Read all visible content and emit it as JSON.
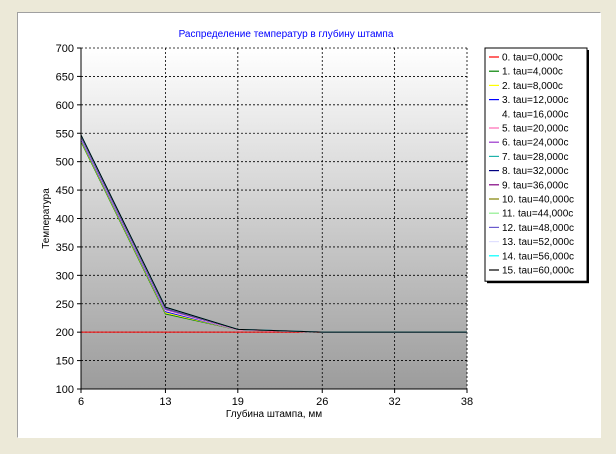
{
  "chart_data": {
    "type": "line",
    "title": "Распределение температур в глубину штампа",
    "xlabel": "Глубина штампа, мм",
    "ylabel": "Температура",
    "xlim": [
      6,
      38
    ],
    "ylim": [
      100,
      700
    ],
    "x_ticks": [
      6,
      13,
      19,
      26,
      32,
      38
    ],
    "y_ticks": [
      100,
      150,
      200,
      250,
      300,
      350,
      400,
      450,
      500,
      550,
      600,
      650,
      700
    ],
    "grid": true,
    "legend_position": "right",
    "x": [
      6,
      13,
      19,
      26,
      32,
      38
    ],
    "series": [
      {
        "name": "0. tau=0,000c",
        "color": "#ff0000",
        "values": [
          200,
          200,
          200,
          200,
          200,
          200
        ]
      },
      {
        "name": "1. tau=4,000c",
        "color": "#008000",
        "values": [
          535,
          232,
          204,
          200,
          200,
          200
        ]
      },
      {
        "name": "2. tau=8,000c",
        "color": "#ffff00",
        "values": [
          537,
          234,
          204,
          200,
          200,
          200
        ]
      },
      {
        "name": "3. tau=12,000c",
        "color": "#0000ff",
        "values": [
          539,
          236,
          204,
          200,
          200,
          200
        ]
      },
      {
        "name": "4. tau=16,000c",
        "color": "#ffffff",
        "values": [
          541,
          238,
          204,
          200,
          200,
          200
        ]
      },
      {
        "name": "5. tau=20,000c",
        "color": "#ff69b4",
        "values": [
          542,
          239,
          204,
          200,
          200,
          200
        ]
      },
      {
        "name": "6. tau=24,000c",
        "color": "#9933cc",
        "values": [
          543,
          240,
          205,
          200,
          200,
          200
        ]
      },
      {
        "name": "7. tau=28,000c",
        "color": "#20b2aa",
        "values": [
          544,
          241,
          205,
          200,
          200,
          200
        ]
      },
      {
        "name": "8. tau=32,000c",
        "color": "#000080",
        "values": [
          545,
          242,
          205,
          200,
          200,
          200
        ]
      },
      {
        "name": "9. tau=36,000c",
        "color": "#800080",
        "values": [
          545,
          242,
          205,
          200,
          200,
          200
        ]
      },
      {
        "name": "10. tau=40,000c",
        "color": "#808000",
        "values": [
          546,
          243,
          205,
          200,
          200,
          200
        ]
      },
      {
        "name": "11. tau=44,000c",
        "color": "#90ee90",
        "values": [
          546,
          243,
          205,
          200,
          200,
          200
        ]
      },
      {
        "name": "12. tau=48,000c",
        "color": "#6a5acd",
        "values": [
          546,
          243,
          205,
          200,
          200,
          200
        ]
      },
      {
        "name": "13. tau=52,000c",
        "color": "#e0e0ff",
        "values": [
          547,
          244,
          205,
          200,
          200,
          200
        ]
      },
      {
        "name": "14. tau=56,000c",
        "color": "#00ffff",
        "values": [
          547,
          244,
          205,
          200,
          200,
          200
        ]
      },
      {
        "name": "15. tau=60,000c",
        "color": "#000000",
        "values": [
          547,
          244,
          205,
          200,
          200,
          200
        ]
      }
    ]
  }
}
